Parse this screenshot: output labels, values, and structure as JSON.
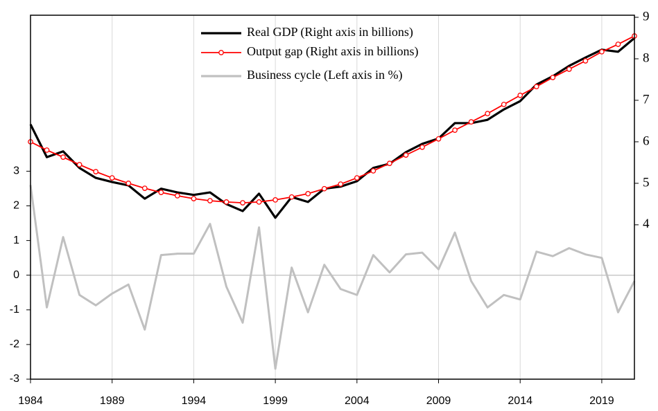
{
  "chart_data": {
    "type": "line",
    "x": [
      1984,
      1985,
      1986,
      1987,
      1988,
      1989,
      1990,
      1991,
      1992,
      1993,
      1994,
      1995,
      1996,
      1997,
      1998,
      1999,
      2000,
      2001,
      2002,
      2003,
      2004,
      2005,
      2006,
      2007,
      2008,
      2009,
      2010,
      2011,
      2012,
      2013,
      2014,
      2015,
      2016,
      2017,
      2018,
      2019,
      2020,
      2021
    ],
    "series": [
      {
        "name": "Real GDP (Right axis in billions)",
        "color": "#000000",
        "axis": "y2",
        "values": [
          6.42,
          5.63,
          5.77,
          5.37,
          5.13,
          5.03,
          4.95,
          4.63,
          4.87,
          4.78,
          4.72,
          4.78,
          4.5,
          4.33,
          4.75,
          4.17,
          4.67,
          4.55,
          4.87,
          4.92,
          5.05,
          5.37,
          5.47,
          5.75,
          5.95,
          6.08,
          6.45,
          6.45,
          6.53,
          6.78,
          6.98,
          7.38,
          7.58,
          7.83,
          8.03,
          8.22,
          8.17,
          8.5
        ]
      },
      {
        "name": "Output gap (Right axis in billions)",
        "color": "#ff0000",
        "axis": "y2",
        "marker": "circle",
        "values": [
          6.0,
          5.8,
          5.63,
          5.45,
          5.28,
          5.13,
          5.0,
          4.88,
          4.78,
          4.7,
          4.63,
          4.58,
          4.55,
          4.53,
          4.55,
          4.6,
          4.67,
          4.75,
          4.87,
          4.98,
          5.13,
          5.3,
          5.48,
          5.68,
          5.87,
          6.07,
          6.28,
          6.48,
          6.68,
          6.9,
          7.12,
          7.33,
          7.55,
          7.75,
          7.95,
          8.17,
          8.35,
          8.55
        ]
      },
      {
        "name": "Business cycle (Left axis in %)",
        "color": "#c0c0c0",
        "axis": "y",
        "values": [
          2.6,
          -0.93,
          1.1,
          -0.57,
          -0.87,
          -0.53,
          -0.27,
          -1.57,
          0.58,
          0.62,
          0.62,
          1.48,
          -0.33,
          -1.37,
          1.38,
          -2.7,
          0.22,
          -1.07,
          0.3,
          -0.4,
          -0.57,
          0.58,
          0.08,
          0.6,
          0.65,
          0.17,
          1.23,
          -0.17,
          -0.93,
          -0.57,
          -0.7,
          0.68,
          0.55,
          0.78,
          0.6,
          0.5,
          -1.07,
          -0.17
        ]
      }
    ],
    "xlim": [
      1984,
      2021
    ],
    "xticks": [
      1984,
      1989,
      1994,
      1999,
      2004,
      2009,
      2014,
      2019
    ],
    "ylim": [
      -3,
      7.5
    ],
    "yticks": [
      -3,
      -2,
      -1,
      0,
      1,
      2,
      3
    ],
    "y2lim": [
      0.28,
      9.05
    ],
    "y2ticks": [
      4,
      5,
      6,
      7,
      8,
      9
    ],
    "grid": "x",
    "zero_line": true,
    "legend": "top"
  }
}
